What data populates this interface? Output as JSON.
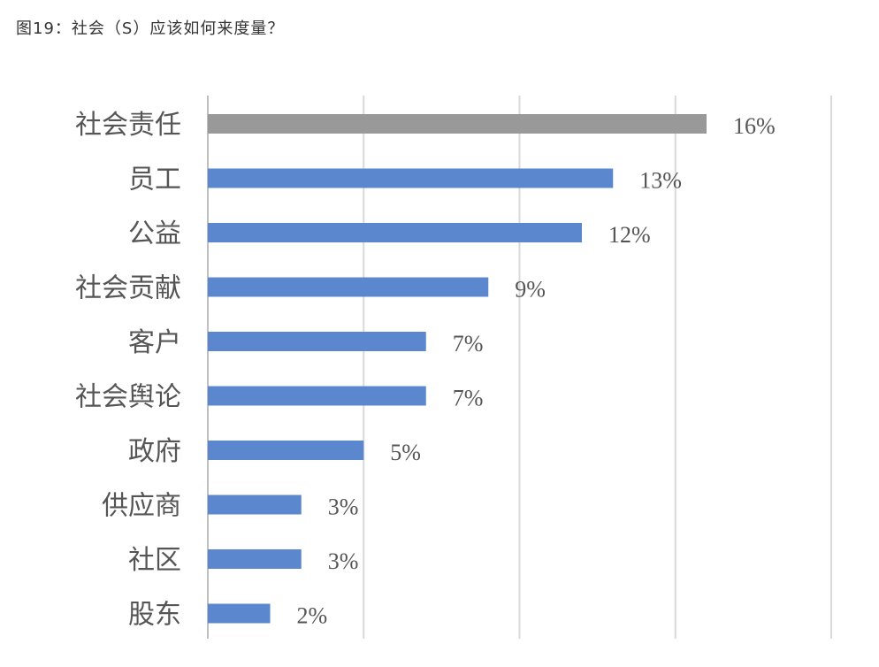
{
  "figure_title": "图19：社会（S）应该如何来度量？",
  "chart_data": {
    "type": "bar",
    "orientation": "horizontal",
    "categories": [
      "社会责任",
      "员工",
      "公益",
      "社会贡献",
      "客户",
      "社会舆论",
      "政府",
      "供应商",
      "社区",
      "股东"
    ],
    "values": [
      16,
      13,
      12,
      9,
      7,
      7,
      5,
      3,
      3,
      2
    ],
    "value_labels": [
      "16%",
      "13%",
      "12%",
      "9%",
      "7%",
      "7%",
      "5%",
      "3%",
      "3%",
      "2%"
    ],
    "unit": "%",
    "xlim": [
      0,
      20
    ],
    "grid": true,
    "legend": "none",
    "colors": {
      "highlight": "#999999",
      "default": "#5b87cf",
      "grid": "#d9d9d9",
      "axis": "#bfbfbf",
      "text": "#555555"
    },
    "highlight_index": 0
  }
}
